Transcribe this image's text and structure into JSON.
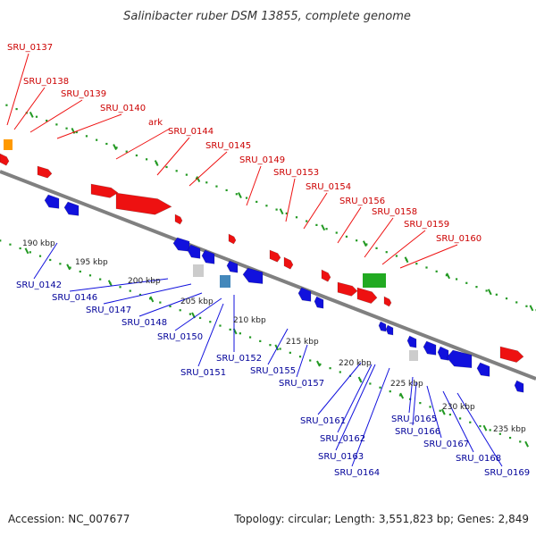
{
  "title": "Salinibacter ruber DSM 13855, complete genome",
  "footer": {
    "accession": "Accession: NC_007677",
    "summary": "Topology: circular; Length: 3,551,823 bp; Genes: 2,849"
  },
  "colors": {
    "forward_gene": "#ee1111",
    "reverse_gene": "#1111dd",
    "rna_gene": "#22aa22",
    "other_gene": "#ff9900",
    "pseudo_gene": "#cccccc",
    "misc_gene": "#4488bb",
    "backbone": "#808080",
    "ticks": "#229922",
    "forward_label": "#cc0000",
    "reverse_label": "#000099"
  },
  "kbp_ticks": [
    "190 kbp",
    "195 kbp",
    "200 kbp",
    "205 kbp",
    "210 kbp",
    "215 kbp",
    "220 kbp",
    "225 kbp",
    "230 kbp",
    "235 kbp"
  ],
  "forward_labels": [
    "SRU_0137",
    "SRU_0138",
    "SRU_0139",
    "SRU_0140",
    "ark",
    "SRU_0144",
    "SRU_0145",
    "SRU_0149",
    "SRU_0153",
    "SRU_0154",
    "SRU_0156",
    "SRU_0158",
    "SRU_0159",
    "SRU_0160"
  ],
  "reverse_labels": [
    "SRU_0142",
    "SRU_0146",
    "SRU_0147",
    "SRU_0148",
    "SRU_0150",
    "SRU_0151",
    "SRU_0152",
    "SRU_0155",
    "SRU_0157",
    "SRU_0161",
    "SRU_0162",
    "SRU_0163",
    "SRU_0164",
    "SRU_0165",
    "SRU_0166",
    "SRU_0167",
    "SRU_0168",
    "SRU_0169"
  ]
}
